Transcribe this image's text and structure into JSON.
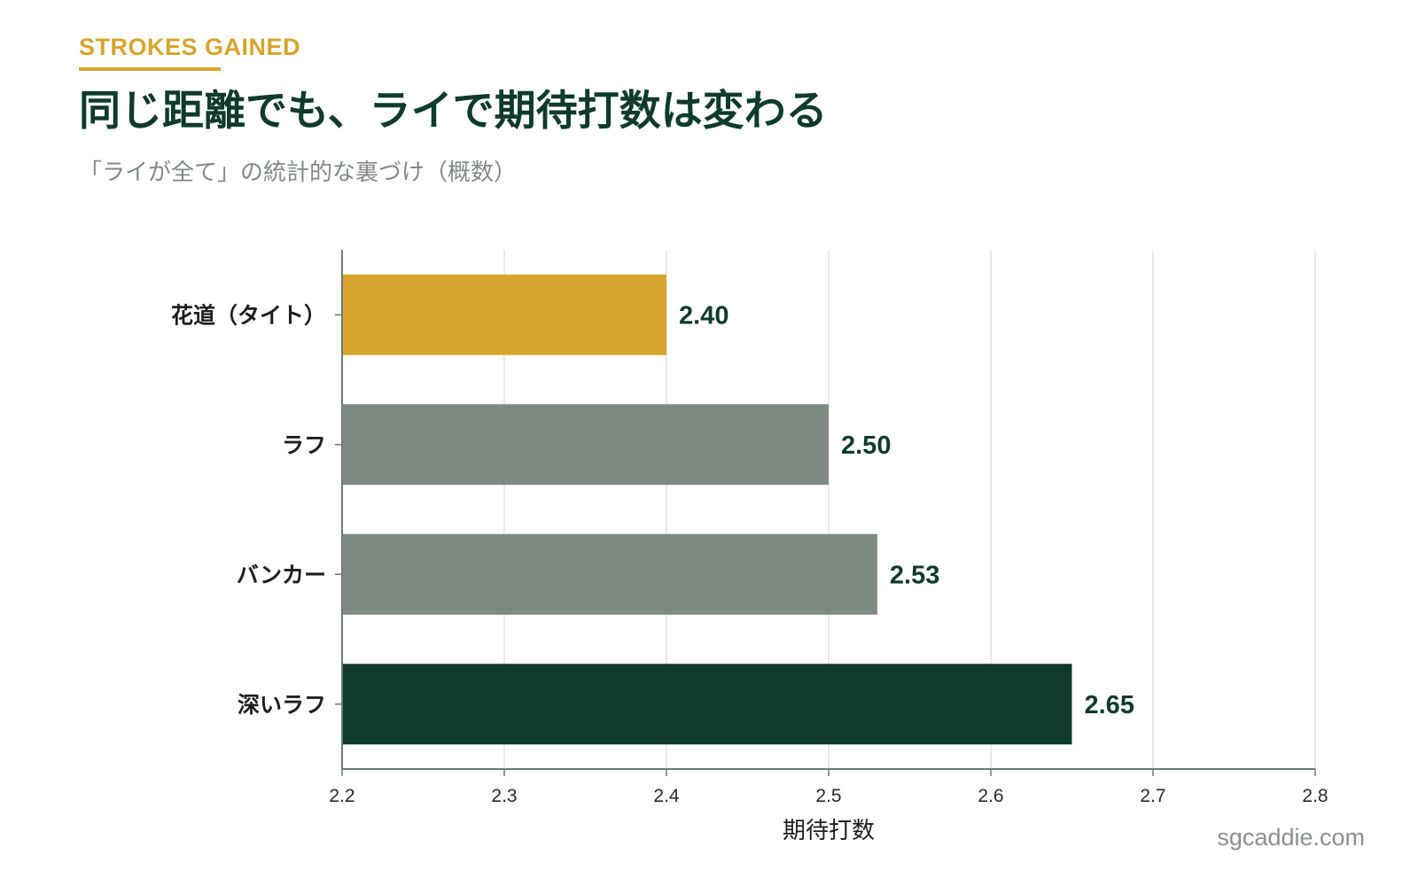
{
  "header": {
    "eyebrow": "STROKES GAINED",
    "title": "同じ距離でも、ライで期待打数は変わる",
    "subtitle": "「ライが全て」の統計的な裏づけ（概数）"
  },
  "footer": {
    "credit": "sgcaddie.com"
  },
  "colors": {
    "gold": "#d5a52e",
    "gray": "#7d8a82",
    "dark_green": "#0f3a2e",
    "grid": "#e3e3e3",
    "axis": "#6e7a74"
  },
  "chart_data": {
    "type": "bar",
    "orientation": "horizontal",
    "categories": [
      "花道（タイト）",
      "ラフ",
      "バンカー",
      "深いラフ"
    ],
    "values": [
      2.4,
      2.5,
      2.53,
      2.65
    ],
    "value_labels": [
      "2.40",
      "2.50",
      "2.53",
      "2.65"
    ],
    "bar_colors": [
      "#d5a52e",
      "#7d8a82",
      "#7d8a82",
      "#0f3a2e"
    ],
    "xlabel": "期待打数",
    "xlim": [
      2.2,
      2.8
    ],
    "xticks": [
      2.2,
      2.3,
      2.4,
      2.5,
      2.6,
      2.7,
      2.8
    ],
    "xtick_labels": [
      "2.2",
      "2.3",
      "2.4",
      "2.5",
      "2.6",
      "2.7",
      "2.8"
    ],
    "grid": "vertical"
  }
}
